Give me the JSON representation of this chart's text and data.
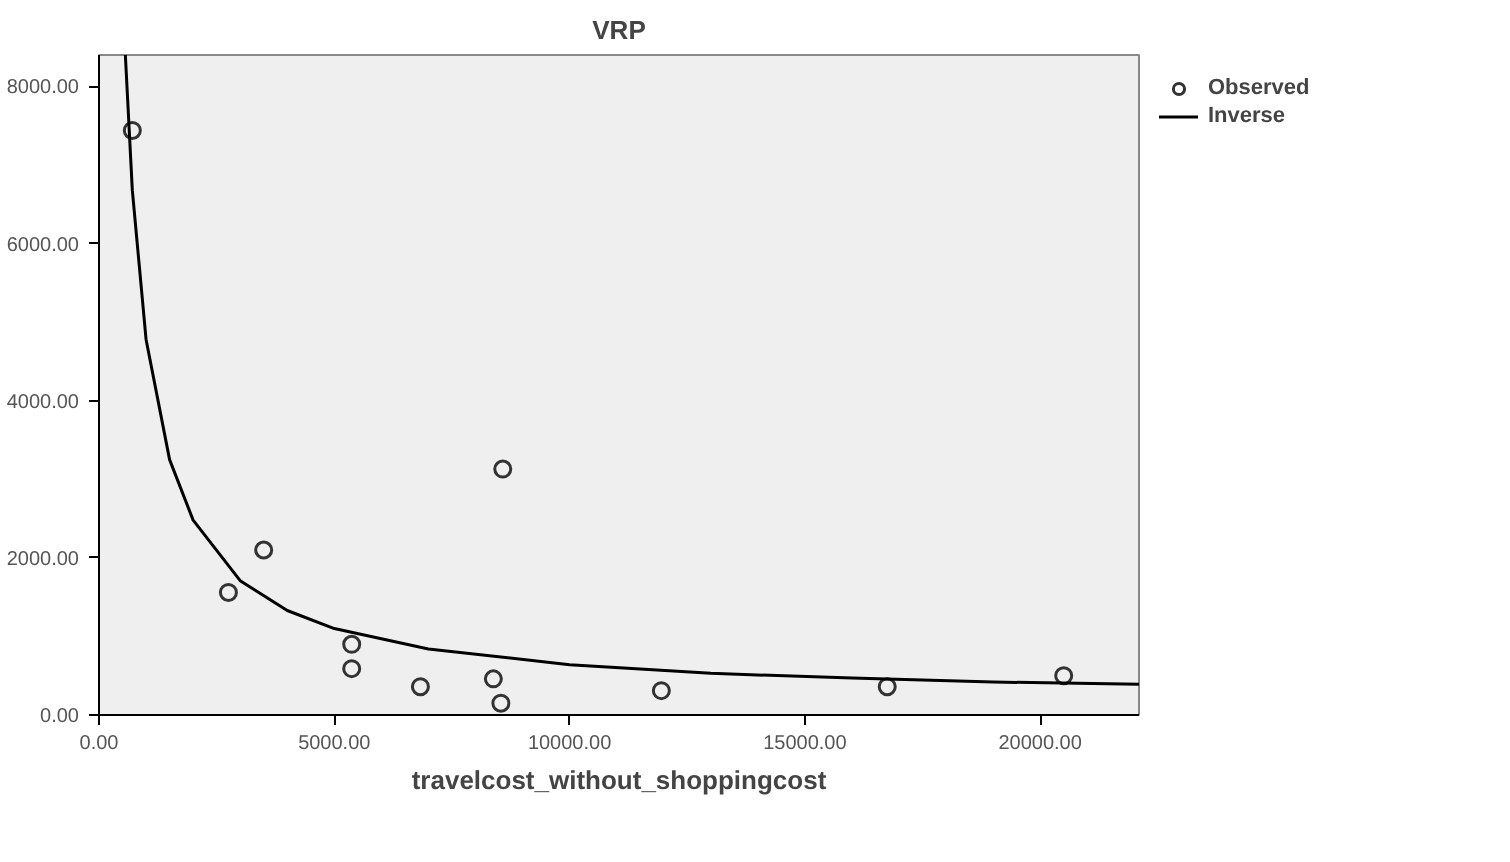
{
  "chart_data": {
    "type": "scatter",
    "title": "VRP",
    "xlabel": "travelcost_without_shoppingcost",
    "xlim": [
      0,
      22100
    ],
    "ylim": [
      0,
      8400
    ],
    "xticks": [
      {
        "value": 0,
        "label": "0.00"
      },
      {
        "value": 5000,
        "label": "5000.00"
      },
      {
        "value": 10000,
        "label": "10000.00"
      },
      {
        "value": 15000,
        "label": "15000.00"
      },
      {
        "value": 20000,
        "label": "20000.00"
      }
    ],
    "yticks": [
      {
        "value": 0,
        "label": "0.00"
      },
      {
        "value": 2000,
        "label": "2000.00"
      },
      {
        "value": 4000,
        "label": "4000.00"
      },
      {
        "value": 6000,
        "label": "6000.00"
      },
      {
        "value": 8000,
        "label": "8000.00"
      }
    ],
    "grid": false,
    "legend": "top right",
    "series": [
      {
        "name": "Observed",
        "marker": "circle",
        "color": "#333333",
        "x": [
          708,
          2750,
          3500,
          5370,
          5370,
          6830,
          8380,
          8540,
          8580,
          11950,
          16750,
          20500
        ],
        "values": [
          7440,
          1560,
          2100,
          900,
          590,
          360,
          460,
          150,
          3130,
          310,
          360,
          500
        ]
      },
      {
        "name": "Inverse",
        "type": "line",
        "color": "#000000",
        "x": [
          560,
          708,
          1000,
          1500,
          2000,
          3000,
          4000,
          5000,
          7000,
          10000,
          13000,
          16000,
          19000,
          22100
        ],
        "values": [
          8400,
          6680,
          4780,
          3250,
          2480,
          1710,
          1330,
          1100,
          840,
          640,
          530,
          470,
          420,
          390
        ]
      }
    ]
  }
}
